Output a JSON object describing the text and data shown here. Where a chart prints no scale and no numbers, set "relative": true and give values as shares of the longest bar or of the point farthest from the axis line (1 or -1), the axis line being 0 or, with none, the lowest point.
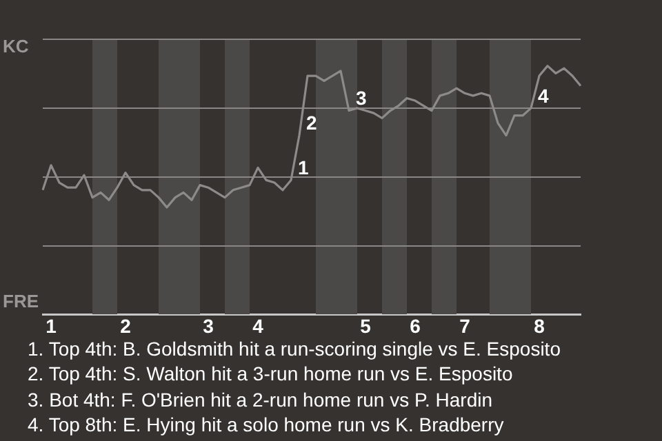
{
  "chart_data": {
    "type": "line",
    "relative": true,
    "categories": [
      null,
      "1",
      null,
      null,
      null,
      null,
      null,
      null,
      null,
      null,
      "2",
      null,
      null,
      null,
      null,
      null,
      null,
      null,
      null,
      null,
      "3",
      null,
      null,
      null,
      null,
      null,
      "4",
      null,
      null,
      null,
      null,
      null,
      null,
      null,
      null,
      null,
      null,
      null,
      null,
      "5",
      null,
      null,
      null,
      null,
      null,
      "6",
      null,
      null,
      null,
      null,
      null,
      "7",
      null,
      null,
      null,
      null,
      null,
      null,
      null,
      null,
      "8",
      null,
      null,
      null,
      null,
      null
    ],
    "series": [
      {
        "color": "#8c8b89",
        "values": [
          0.5,
          0.6,
          0.53,
          0.51,
          0.51,
          0.56,
          0.47,
          0.49,
          0.46,
          0.51,
          0.57,
          0.52,
          0.5,
          0.5,
          0.47,
          0.43,
          0.47,
          0.49,
          0.46,
          0.52,
          0.51,
          0.49,
          0.47,
          0.5,
          0.51,
          0.52,
          0.59,
          0.54,
          0.53,
          0.5,
          0.54,
          0.72,
          0.96,
          0.96,
          0.94,
          0.96,
          0.98,
          0.82,
          0.83,
          0.82,
          0.81,
          0.79,
          0.82,
          0.84,
          0.87,
          0.86,
          0.84,
          0.82,
          0.88,
          0.89,
          0.91,
          0.89,
          0.88,
          0.89,
          0.88,
          0.77,
          0.72,
          0.8,
          0.8,
          0.83,
          0.96,
          1,
          0.97,
          0.99,
          0.96,
          0.92
        ]
      }
    ],
    "grid": "y",
    "marker": "none",
    "annotations": [
      "KC",
      "FRE",
      "1",
      "2",
      "3",
      "4",
      "1. Top 4th: B. Goldsmith hit a run-scoring single vs E. Esposito",
      "2. Top 4th: S. Walton hit a 3-run home run vs E. Esposito",
      "3. Bot 4th: F. O'Brien hit a 2-run home run vs P. Hardin",
      "4. Top 8th: E. Hying hit a solo home run vs K. Bradberry"
    ]
  }
}
